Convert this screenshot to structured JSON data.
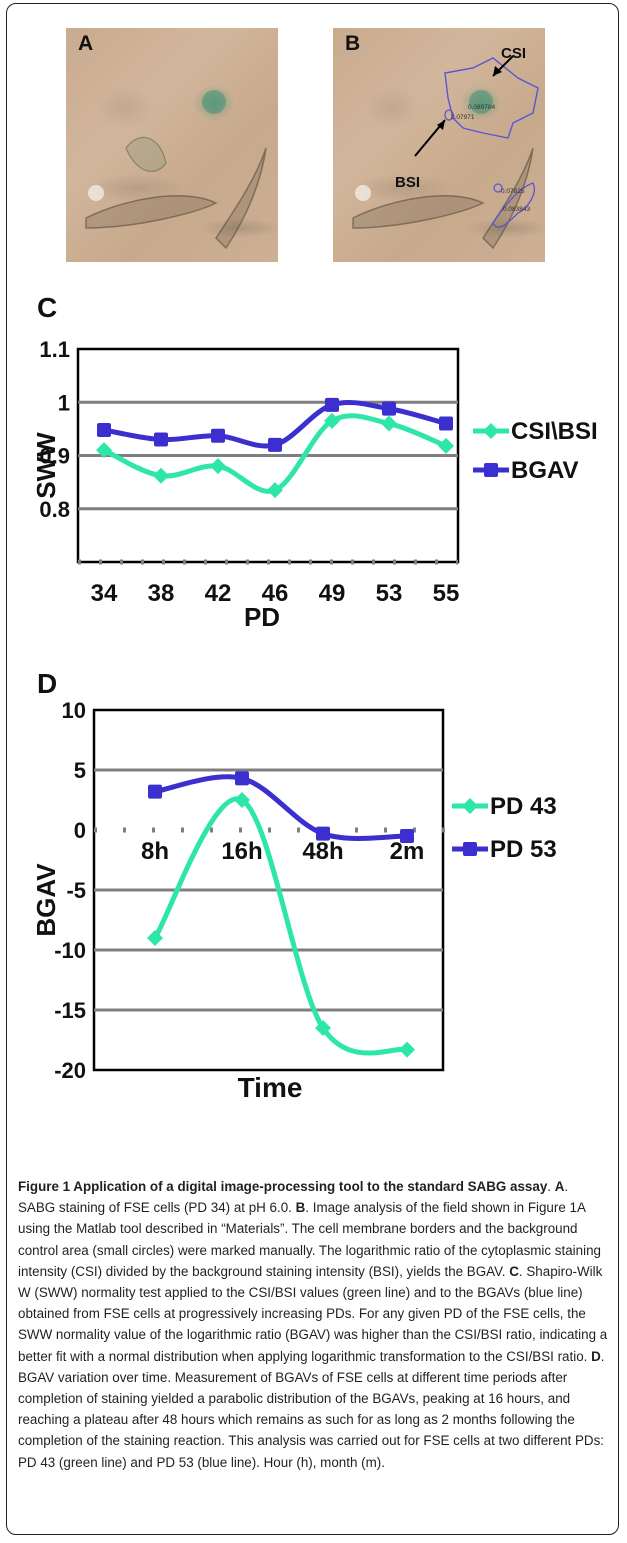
{
  "panels": {
    "a_label": "A",
    "b_label": "B",
    "c_label": "C",
    "d_label": "D"
  },
  "micrograph_b": {
    "csi_label": "CSI",
    "bsi_label": "BSI",
    "readouts": [
      "0.089784",
      "0.07971",
      "0.07825",
      "0.083843"
    ]
  },
  "chart_data": [
    {
      "type": "line",
      "panel": "C",
      "categories": [
        "34",
        "38",
        "42",
        "46",
        "49",
        "53",
        "55"
      ],
      "xlabel": "PD",
      "ylabel": "SWW",
      "ylim": [
        0.7,
        1.1
      ],
      "yticks": [
        "1.1",
        "1",
        "0.9",
        "0.8"
      ],
      "grid": true,
      "legend": "right",
      "series": [
        {
          "name": "CSI\\BSI",
          "color": "#2ee6a8",
          "values": [
            0.91,
            0.862,
            0.88,
            0.835,
            0.965,
            0.96,
            0.918
          ]
        },
        {
          "name": "BGAV",
          "color": "#3b2fd0",
          "values": [
            0.948,
            0.93,
            0.937,
            0.92,
            0.995,
            0.988,
            0.96
          ]
        }
      ]
    },
    {
      "type": "line",
      "panel": "D",
      "categories": [
        "8h",
        "16h",
        "48h",
        "2m"
      ],
      "xlabel": "Time",
      "ylabel": "BGAV",
      "ylim": [
        -20,
        10
      ],
      "yticks": [
        "10",
        "5",
        "0",
        "-5",
        "-10",
        "-15",
        "-20"
      ],
      "grid": true,
      "legend": "right",
      "series": [
        {
          "name": "PD 43",
          "color": "#2ee6a8",
          "values": [
            -9,
            2.5,
            -16.5,
            -18.3
          ]
        },
        {
          "name": "PD 53",
          "color": "#3b2fd0",
          "values": [
            3.2,
            4.3,
            -0.3,
            -0.5
          ]
        }
      ]
    }
  ],
  "caption": {
    "figure_label": "Figure 1 Application of a digital image-processing tool to the standard SABG assay",
    "text_1": ". ",
    "a": "A",
    "text_2": ". SABG staining of FSE cells (PD 34) at pH 6.0. ",
    "b": "B",
    "text_3": ". Image analysis of the field shown in Figure 1A using the Matlab tool described in “Materials”. The cell membrane borders and the background control area (small circles) were marked manually. The logarithmic ratio of the cytoplasmic staining intensity (CSI) divided by the background staining intensity (BSI), yields the BGAV. ",
    "c": "C",
    "text_4": ". Shapiro-Wilk W (SWW) normality test applied to the CSI/BSI values (green line) and to the BGAVs (blue line) obtained from FSE cells at progressively increasing PDs. For any given PD of the FSE cells, the SWW normality value of the logarithmic ratio (BGAV) was higher than the CSI/BSI ratio, indicating a better fit with a normal distribution when applying logarithmic transformation to the CSI/BSI ratio. ",
    "d": "D",
    "text_5": ". BGAV variation over time. Measurement of BGAVs of FSE cells at different time periods after completion of staining yielded a parabolic distribution of the BGAVs, peaking at 16 hours, and reaching a plateau after 48 hours which remains as such for as long as 2 months following the completion of the staining reaction. This analysis was carried out for FSE cells at two different PDs: PD 43 (green line) and PD 53 (blue line). Hour (h), month (m)."
  }
}
